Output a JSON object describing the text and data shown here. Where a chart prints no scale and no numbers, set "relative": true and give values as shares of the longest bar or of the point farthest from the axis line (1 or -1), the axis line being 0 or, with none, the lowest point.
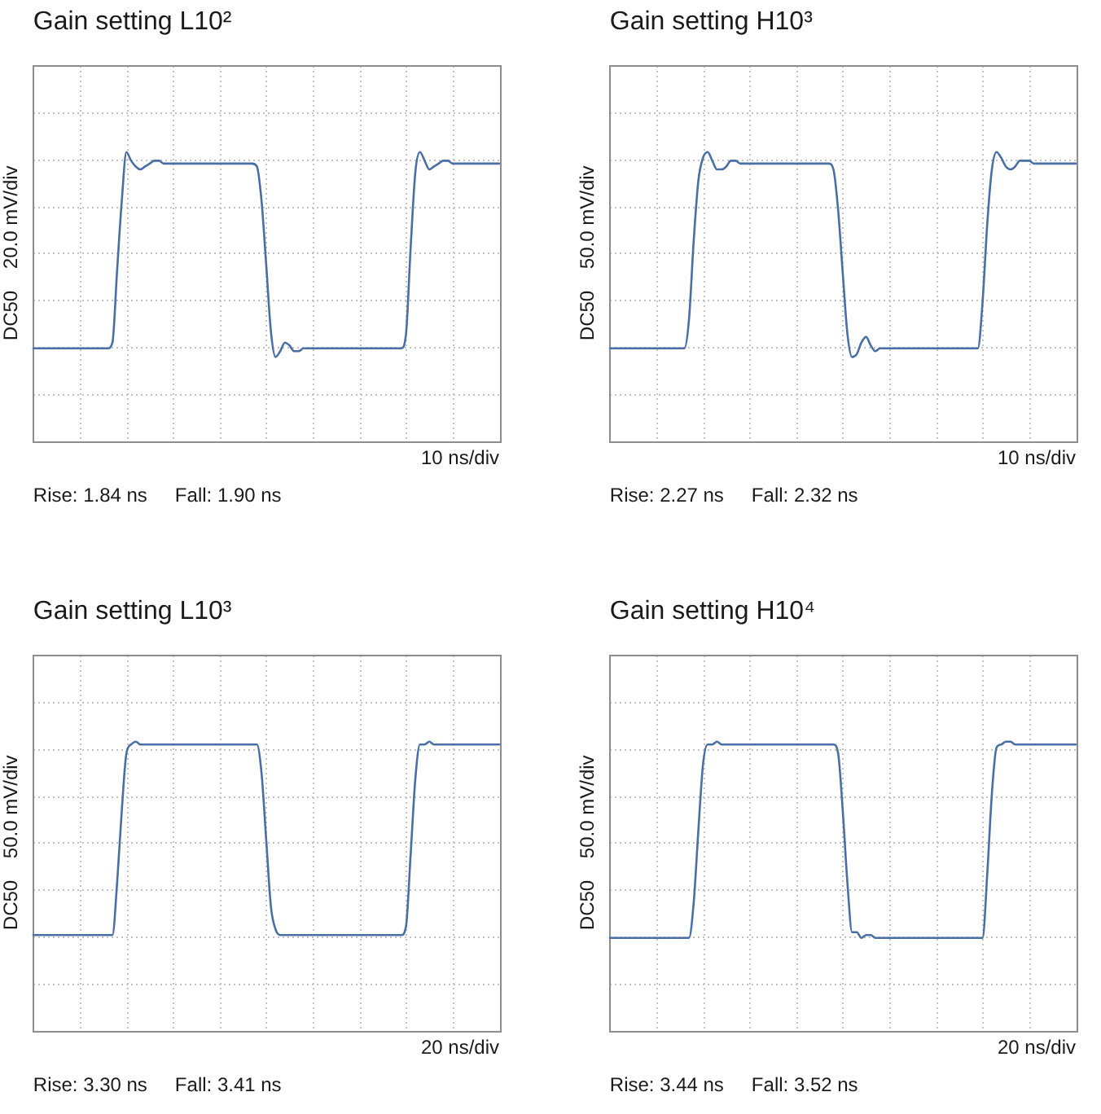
{
  "chart_data": [
    {
      "type": "line",
      "title": "Gain setting L10²",
      "xlabel": "10 ns/div",
      "ylabel": "DC50    20.0 mV/div",
      "annotations": [
        "Rise: 1.84 ns",
        "Fall: 1.90 ns"
      ],
      "relative": true,
      "grid": true,
      "marker": "none",
      "line_style": "solid",
      "color": "#4a6fa5",
      "categories": [
        null,
        null,
        null,
        null,
        null,
        null,
        null,
        null,
        null,
        null,
        null,
        null,
        null,
        null,
        null,
        null,
        null,
        null,
        null,
        null,
        null,
        null,
        null,
        null,
        null,
        null,
        null,
        null,
        null,
        null,
        null,
        null,
        null,
        null,
        null,
        null,
        null,
        null,
        null,
        null,
        null,
        null,
        null,
        null,
        null,
        null,
        null,
        null,
        null,
        null,
        null,
        null,
        null,
        null,
        null,
        null,
        null,
        null,
        null,
        null,
        null,
        null,
        null,
        null,
        null,
        null,
        null,
        null,
        null,
        null,
        null,
        null,
        null,
        null,
        null,
        null,
        null,
        null,
        null,
        null,
        null,
        null,
        null,
        null,
        null,
        null,
        null,
        null,
        null,
        null,
        null,
        null,
        null,
        null,
        null,
        null,
        null,
        null,
        null,
        null,
        null
      ],
      "values": [
        0.32,
        0.32,
        0.32,
        0.32,
        0.32,
        0.32,
        0.32,
        0.32,
        0.32,
        0.32,
        0.32,
        0.32,
        0.32,
        0.32,
        0.32,
        0.32,
        0.32,
        0.34,
        0.59,
        0.83,
        1.0,
        0.97,
        0.95,
        0.94,
        0.95,
        0.96,
        0.97,
        0.97,
        0.96,
        0.96,
        0.96,
        0.96,
        0.96,
        0.96,
        0.96,
        0.96,
        0.96,
        0.96,
        0.96,
        0.96,
        0.96,
        0.96,
        0.96,
        0.96,
        0.96,
        0.96,
        0.96,
        0.96,
        0.95,
        0.83,
        0.61,
        0.38,
        0.29,
        0.31,
        0.34,
        0.33,
        0.31,
        0.31,
        0.32,
        0.32,
        0.32,
        0.32,
        0.32,
        0.32,
        0.32,
        0.32,
        0.32,
        0.32,
        0.32,
        0.32,
        0.32,
        0.32,
        0.32,
        0.32,
        0.32,
        0.32,
        0.32,
        0.32,
        0.32,
        0.32,
        0.37,
        0.67,
        0.93,
        1.0,
        0.97,
        0.94,
        0.95,
        0.96,
        0.97,
        0.97,
        0.96,
        0.96,
        0.96,
        0.96,
        0.96,
        0.96,
        0.96,
        0.96,
        0.96,
        0.96,
        0.96
      ]
    },
    {
      "type": "line",
      "title": "Gain setting H10³",
      "xlabel": "10 ns/div",
      "ylabel": "DC50    50.0 mV/div",
      "annotations": [
        "Rise: 2.27 ns",
        "Fall: 2.32 ns"
      ],
      "relative": true,
      "grid": true,
      "marker": "none",
      "line_style": "solid",
      "color": "#4a6fa5",
      "categories": [
        null,
        null,
        null,
        null,
        null,
        null,
        null,
        null,
        null,
        null,
        null,
        null,
        null,
        null,
        null,
        null,
        null,
        null,
        null,
        null,
        null,
        null,
        null,
        null,
        null,
        null,
        null,
        null,
        null,
        null,
        null,
        null,
        null,
        null,
        null,
        null,
        null,
        null,
        null,
        null,
        null,
        null,
        null,
        null,
        null,
        null,
        null,
        null,
        null,
        null,
        null,
        null,
        null,
        null,
        null,
        null,
        null,
        null,
        null,
        null,
        null,
        null,
        null,
        null,
        null,
        null,
        null,
        null,
        null,
        null,
        null,
        null,
        null,
        null,
        null,
        null,
        null,
        null,
        null,
        null,
        null,
        null,
        null,
        null,
        null,
        null,
        null,
        null,
        null,
        null,
        null,
        null,
        null,
        null,
        null,
        null,
        null,
        null,
        null,
        null,
        null
      ],
      "values": [
        0.32,
        0.32,
        0.32,
        0.32,
        0.32,
        0.32,
        0.32,
        0.32,
        0.32,
        0.32,
        0.32,
        0.32,
        0.32,
        0.32,
        0.32,
        0.32,
        0.32,
        0.42,
        0.69,
        0.9,
        0.98,
        1.0,
        0.97,
        0.94,
        0.94,
        0.95,
        0.97,
        0.97,
        0.96,
        0.96,
        0.96,
        0.96,
        0.96,
        0.96,
        0.96,
        0.96,
        0.96,
        0.96,
        0.96,
        0.96,
        0.96,
        0.96,
        0.96,
        0.96,
        0.96,
        0.96,
        0.96,
        0.96,
        0.94,
        0.8,
        0.58,
        0.37,
        0.29,
        0.3,
        0.34,
        0.36,
        0.33,
        0.31,
        0.32,
        0.32,
        0.32,
        0.32,
        0.32,
        0.32,
        0.32,
        0.32,
        0.32,
        0.32,
        0.32,
        0.32,
        0.32,
        0.32,
        0.32,
        0.32,
        0.32,
        0.32,
        0.32,
        0.32,
        0.32,
        0.32,
        0.48,
        0.75,
        0.94,
        1.0,
        0.98,
        0.95,
        0.94,
        0.95,
        0.97,
        0.97,
        0.97,
        0.96,
        0.96,
        0.96,
        0.96,
        0.96,
        0.96,
        0.96,
        0.96,
        0.96,
        0.96
      ]
    },
    {
      "type": "line",
      "title": "Gain setting L10³",
      "xlabel": "20 ns/div",
      "ylabel": "DC50    50.0 mV/div",
      "annotations": [
        "Rise: 3.30 ns",
        "Fall: 3.41 ns"
      ],
      "relative": true,
      "grid": true,
      "marker": "none",
      "line_style": "solid",
      "color": "#4a6fa5",
      "categories": [
        null,
        null,
        null,
        null,
        null,
        null,
        null,
        null,
        null,
        null,
        null,
        null,
        null,
        null,
        null,
        null,
        null,
        null,
        null,
        null,
        null,
        null,
        null,
        null,
        null,
        null,
        null,
        null,
        null,
        null,
        null,
        null,
        null,
        null,
        null,
        null,
        null,
        null,
        null,
        null,
        null,
        null,
        null,
        null,
        null,
        null,
        null,
        null,
        null,
        null,
        null,
        null,
        null,
        null,
        null,
        null,
        null,
        null,
        null,
        null,
        null,
        null,
        null,
        null,
        null,
        null,
        null,
        null,
        null,
        null,
        null,
        null,
        null,
        null,
        null,
        null,
        null,
        null,
        null,
        null,
        null,
        null,
        null,
        null,
        null,
        null,
        null,
        null,
        null,
        null,
        null,
        null,
        null,
        null,
        null,
        null,
        null,
        null,
        null,
        null,
        null
      ],
      "values": [
        0.33,
        0.33,
        0.33,
        0.33,
        0.33,
        0.33,
        0.33,
        0.33,
        0.33,
        0.33,
        0.33,
        0.33,
        0.33,
        0.33,
        0.33,
        0.33,
        0.33,
        0.33,
        0.51,
        0.76,
        0.96,
        0.99,
        1.0,
        0.99,
        0.99,
        0.99,
        0.99,
        0.99,
        0.99,
        0.99,
        0.99,
        0.99,
        0.99,
        0.99,
        0.99,
        0.99,
        0.99,
        0.99,
        0.99,
        0.99,
        0.99,
        0.99,
        0.99,
        0.99,
        0.99,
        0.99,
        0.99,
        0.99,
        0.99,
        0.89,
        0.66,
        0.43,
        0.35,
        0.33,
        0.33,
        0.33,
        0.33,
        0.33,
        0.33,
        0.33,
        0.33,
        0.33,
        0.33,
        0.33,
        0.33,
        0.33,
        0.33,
        0.33,
        0.33,
        0.33,
        0.33,
        0.33,
        0.33,
        0.33,
        0.33,
        0.33,
        0.33,
        0.33,
        0.33,
        0.33,
        0.36,
        0.61,
        0.87,
        0.99,
        0.99,
        1.0,
        0.99,
        0.99,
        0.99,
        0.99,
        0.99,
        0.99,
        0.99,
        0.99,
        0.99,
        0.99,
        0.99,
        0.99,
        0.99,
        0.99,
        0.99
      ]
    },
    {
      "type": "line",
      "title": "Gain setting H10⁴",
      "xlabel": "20 ns/div",
      "ylabel": "DC50    50.0 mV/div",
      "annotations": [
        "Rise: 3.44 ns",
        "Fall: 3.52 ns"
      ],
      "relative": true,
      "grid": true,
      "marker": "none",
      "line_style": "solid",
      "color": "#4a6fa5",
      "categories": [
        null,
        null,
        null,
        null,
        null,
        null,
        null,
        null,
        null,
        null,
        null,
        null,
        null,
        null,
        null,
        null,
        null,
        null,
        null,
        null,
        null,
        null,
        null,
        null,
        null,
        null,
        null,
        null,
        null,
        null,
        null,
        null,
        null,
        null,
        null,
        null,
        null,
        null,
        null,
        null,
        null,
        null,
        null,
        null,
        null,
        null,
        null,
        null,
        null,
        null,
        null,
        null,
        null,
        null,
        null,
        null,
        null,
        null,
        null,
        null,
        null,
        null,
        null,
        null,
        null,
        null,
        null,
        null,
        null,
        null,
        null,
        null,
        null,
        null,
        null,
        null,
        null,
        null,
        null,
        null,
        null,
        null,
        null,
        null,
        null,
        null,
        null,
        null,
        null,
        null,
        null,
        null,
        null,
        null,
        null,
        null,
        null,
        null,
        null,
        null,
        null
      ],
      "values": [
        0.32,
        0.32,
        0.32,
        0.32,
        0.32,
        0.32,
        0.32,
        0.32,
        0.32,
        0.32,
        0.32,
        0.32,
        0.32,
        0.32,
        0.32,
        0.32,
        0.32,
        0.32,
        0.44,
        0.69,
        0.92,
        0.99,
        0.99,
        1.0,
        0.99,
        0.99,
        0.99,
        0.99,
        0.99,
        0.99,
        0.99,
        0.99,
        0.99,
        0.99,
        0.99,
        0.99,
        0.99,
        0.99,
        0.99,
        0.99,
        0.99,
        0.99,
        0.99,
        0.99,
        0.99,
        0.99,
        0.99,
        0.99,
        0.99,
        0.96,
        0.76,
        0.51,
        0.34,
        0.34,
        0.32,
        0.33,
        0.33,
        0.32,
        0.32,
        0.32,
        0.32,
        0.32,
        0.32,
        0.32,
        0.32,
        0.32,
        0.32,
        0.32,
        0.32,
        0.32,
        0.32,
        0.32,
        0.32,
        0.32,
        0.32,
        0.32,
        0.32,
        0.32,
        0.32,
        0.32,
        0.32,
        0.54,
        0.82,
        0.98,
        0.99,
        1.0,
        1.0,
        0.99,
        0.99,
        0.99,
        0.99,
        0.99,
        0.99,
        0.99,
        0.99,
        0.99,
        0.99,
        0.99,
        0.99,
        0.99,
        0.99
      ]
    }
  ]
}
